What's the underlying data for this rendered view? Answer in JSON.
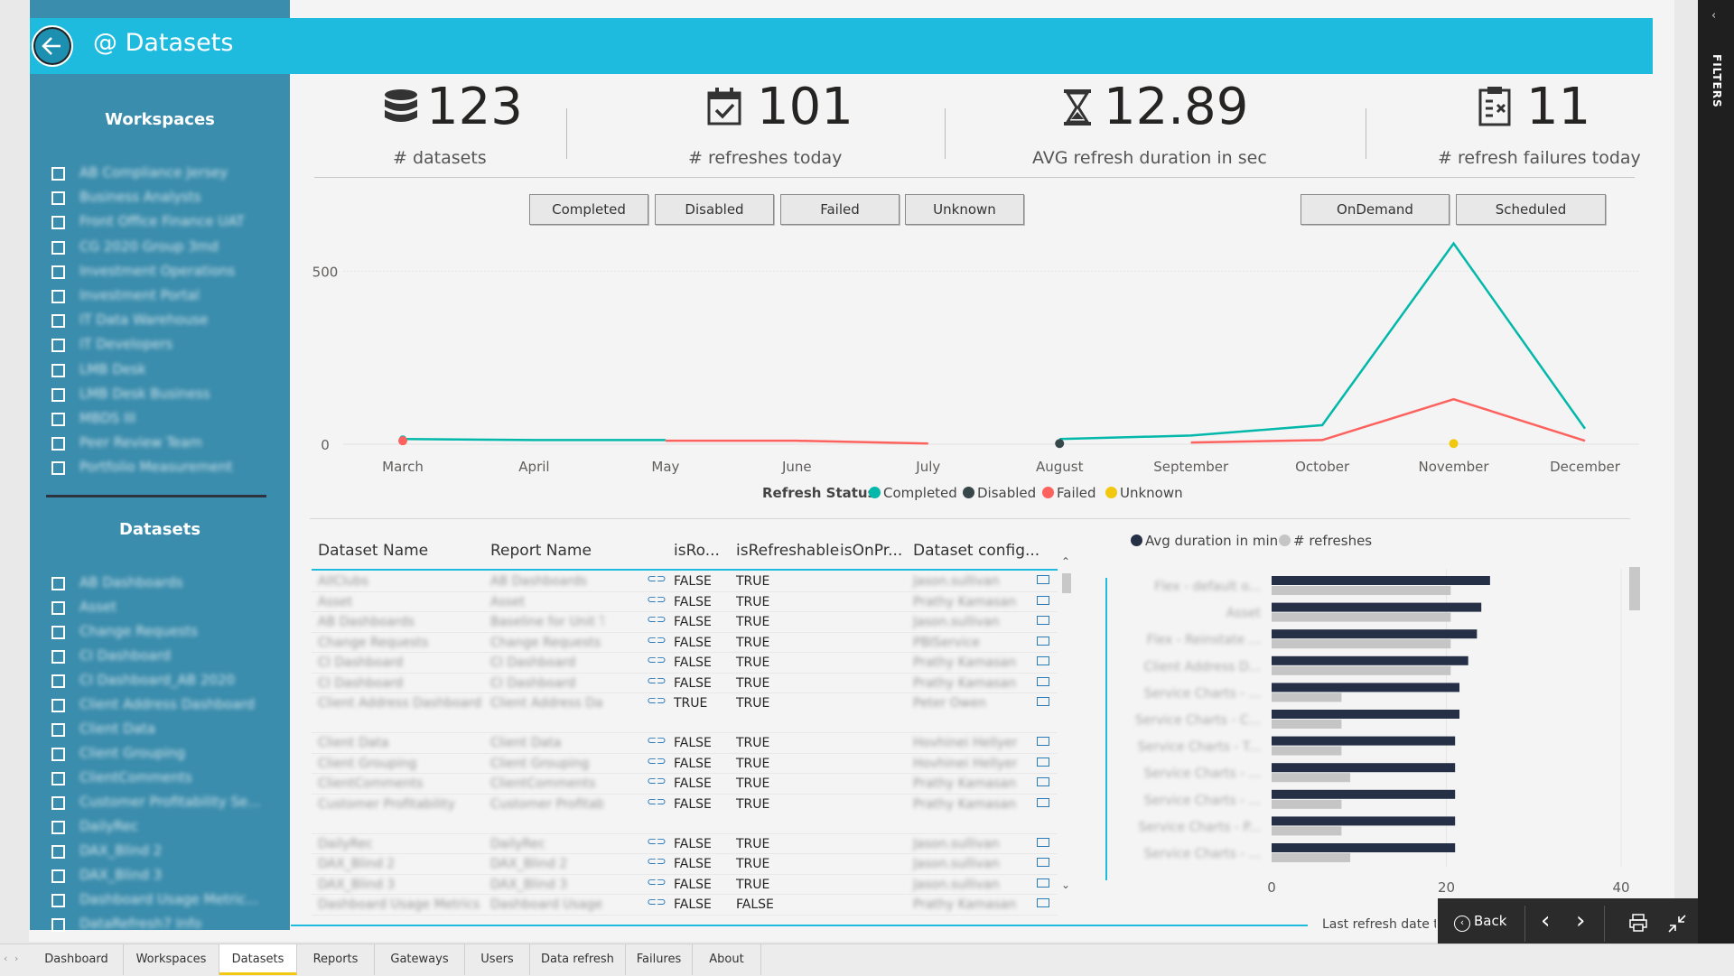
{
  "header": {
    "title": "@ Datasets"
  },
  "sidebar": {
    "workspaces_title": "Workspaces",
    "workspaces": [
      "AB Compliance Jersey",
      "Business Analysts",
      "Front Office Finance UAT",
      "CG 2020 Group 3md",
      "Investment Operations",
      "Investment Portal",
      "IT Data Warehouse",
      "IT Developers",
      "LMB Desk",
      "LMB Desk Business",
      "MBDS III",
      "Peer Review Team",
      "Portfolio Measurement"
    ],
    "datasets_title": "Datasets",
    "datasets": [
      "AB Dashboards",
      "Asset",
      "Change Requests",
      "CI Dashboard",
      "CI Dashboard_AB 2020",
      "Client Address Dashboard",
      "Client Data",
      "Client Grouping",
      "ClientComments",
      "Customer Profitability Se...",
      "DailyRec",
      "DAX_Blind 2",
      "DAX_Blind 3",
      "Dashboard Usage Metric...",
      "DataRefresh7 Info"
    ]
  },
  "kpis": [
    {
      "value": "123",
      "label": "# datasets",
      "icon": "database-icon"
    },
    {
      "value": "101",
      "label": "# refreshes today",
      "icon": "calendar-check-icon"
    },
    {
      "value": "12.89",
      "label": "AVG refresh duration in sec",
      "icon": "hourglass-icon"
    },
    {
      "value": "11",
      "label": "# refresh failures today",
      "icon": "clipboard-x-icon"
    }
  ],
  "status_filters": [
    "Completed",
    "Disabled",
    "Failed",
    "Unknown"
  ],
  "type_filters": [
    "OnDemand",
    "Scheduled"
  ],
  "chart_data": [
    {
      "type": "line",
      "categories": [
        "March",
        "April",
        "May",
        "June",
        "July",
        "August",
        "September",
        "October",
        "November",
        "December"
      ],
      "yticks": [
        0,
        500
      ],
      "ylim": [
        0,
        600
      ],
      "legend_title": "Refresh Status",
      "legend_position": "bottom",
      "series": [
        {
          "name": "Completed",
          "color": "#01b8aa",
          "values": [
            15,
            12,
            12,
            null,
            null,
            15,
            25,
            55,
            580,
            45
          ]
        },
        {
          "name": "Disabled",
          "color": "#374649",
          "values": [
            null,
            null,
            null,
            null,
            null,
            2,
            null,
            null,
            null,
            null
          ]
        },
        {
          "name": "Failed",
          "color": "#fd625e",
          "values": [
            10,
            null,
            10,
            10,
            2,
            null,
            5,
            12,
            130,
            10
          ]
        },
        {
          "name": "Unknown",
          "color": "#f2c80f",
          "values": [
            null,
            null,
            null,
            null,
            null,
            null,
            null,
            null,
            2,
            null
          ]
        }
      ]
    },
    {
      "type": "bar",
      "orientation": "horizontal",
      "categories": [
        "Flex - default o...",
        "Asset",
        "Flex - Reinstate ...",
        "Client Address D...",
        "Service Charts - ...",
        "Service Charts - C...",
        "Service Charts - T...",
        "Service Charts - ...",
        "Service Charts - ...",
        "Service Charts - P...",
        "Service Charts - ..."
      ],
      "xticks": [
        0,
        20,
        40
      ],
      "xlim": [
        0,
        40
      ],
      "legend_position": "top",
      "series": [
        {
          "name": "Avg duration in min",
          "color": "#252f46",
          "values": [
            25,
            24,
            23.5,
            22.5,
            21.5,
            21.5,
            21,
            21,
            21,
            21,
            21
          ]
        },
        {
          "name": "# refreshes",
          "color": "#c5c5c5",
          "values": [
            20.5,
            20.5,
            20.5,
            20.5,
            8,
            8,
            8,
            9,
            8,
            8,
            9
          ]
        }
      ]
    }
  ],
  "table": {
    "headers": [
      "Dataset Name",
      "Report Name",
      "isRo...",
      "isRefreshable",
      "isOnPr...",
      "Dataset config..."
    ],
    "rows": [
      {
        "ds": "AllClubs",
        "rp": "AB Dashboards",
        "ro": "FALSE",
        "rf": "TRUE",
        "cfg": "Jason.sullivan"
      },
      {
        "ds": "Asset",
        "rp": "Asset",
        "ro": "FALSE",
        "rf": "TRUE",
        "cfg": "Prathy Kamasani"
      },
      {
        "ds": "AB Dashboards",
        "rp": "Baseline for Unit Trusts",
        "ro": "FALSE",
        "rf": "TRUE",
        "cfg": "Jason.sullivan"
      },
      {
        "ds": "Change Requests",
        "rp": "Change Requests",
        "ro": "FALSE",
        "rf": "TRUE",
        "cfg": "PBIService"
      },
      {
        "ds": "CI Dashboard",
        "rp": "CI Dashboard",
        "ro": "FALSE",
        "rf": "TRUE",
        "cfg": "Prathy Kamasani"
      },
      {
        "ds": "CI Dashboard",
        "rp": "CI Dashboard",
        "ro": "FALSE",
        "rf": "TRUE",
        "cfg": "Prathy Kamasani"
      },
      {
        "ds": "Client Address Dashboard",
        "rp": "Client Address Dashboard",
        "ro": "TRUE",
        "rf": "TRUE",
        "cfg": "Peter Owen"
      },
      {
        "ds": "Client Data",
        "rp": "Client Data",
        "ro": "FALSE",
        "rf": "TRUE",
        "cfg": "Hovhinei Hellyer"
      },
      {
        "ds": "Client Grouping",
        "rp": "Client Grouping",
        "ro": "FALSE",
        "rf": "TRUE",
        "cfg": "Hovhinei Hellyer"
      },
      {
        "ds": "ClientComments",
        "rp": "ClientComments",
        "ro": "FALSE",
        "rf": "TRUE",
        "cfg": "Prathy Kamasani"
      },
      {
        "ds": "Customer Profitability",
        "rp": "Customer Profitability Sample",
        "ro": "FALSE",
        "rf": "TRUE",
        "cfg": "Prathy Kamasani"
      },
      {
        "ds": "DailyRec",
        "rp": "DailyRec",
        "ro": "FALSE",
        "rf": "TRUE",
        "cfg": "Jason.sullivan"
      },
      {
        "ds": "DAX_Blind 2",
        "rp": "DAX_Blind 2",
        "ro": "FALSE",
        "rf": "TRUE",
        "cfg": "Jason.sullivan"
      },
      {
        "ds": "DAX_Blind 3",
        "rp": "DAX_Blind 3",
        "ro": "FALSE",
        "rf": "TRUE",
        "cfg": "Jason.sullivan"
      },
      {
        "ds": "Dashboard Usage Metrics",
        "rp": "Dashboard Usage",
        "ro": "FALSE",
        "rf": "FALSE",
        "cfg": "Prathy Kamasani"
      }
    ]
  },
  "footer_text": "Last refresh date time",
  "nav": {
    "back_label": "Back"
  },
  "tabs": [
    "Dashboard",
    "Workspaces",
    "Datasets",
    "Reports",
    "Gateways",
    "Users",
    "Data refresh",
    "Failures",
    "About"
  ],
  "filters_label": "FILTERS"
}
